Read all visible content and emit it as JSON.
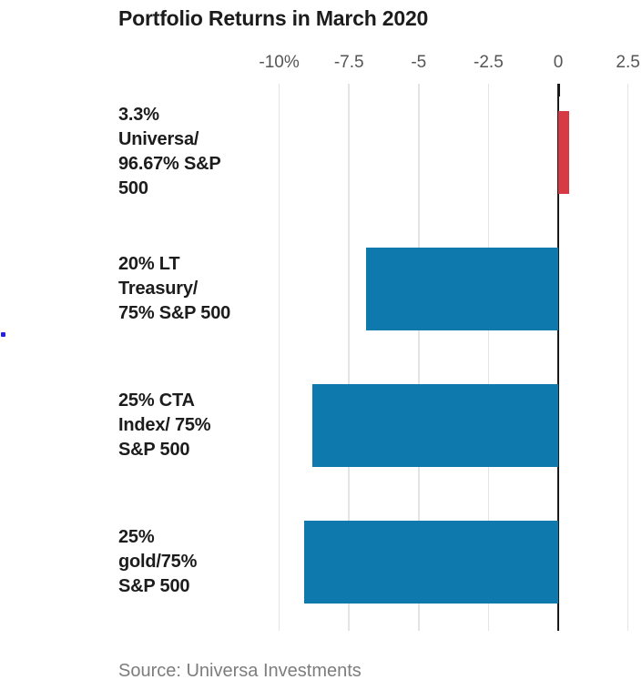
{
  "header": {
    "title": "Portfolio Returns in March 2020"
  },
  "footer": {
    "source": "Source: Universa Investments"
  },
  "chart_data": {
    "type": "bar",
    "orientation": "horizontal",
    "title": "Portfolio Returns in March 2020",
    "categories": [
      [
        "3.3%",
        "Universa/",
        "96.67% S&P",
        "500"
      ],
      [
        "20% LT",
        "Treasury/",
        "75% S&P 500"
      ],
      [
        "25% CTA",
        "Index/ 75%",
        "S&P 500"
      ],
      [
        "25%",
        "gold/75%",
        "S&P 500"
      ]
    ],
    "values": [
      0.4,
      -6.9,
      -8.8,
      -9.1
    ],
    "unit": "percent",
    "x_ticks": [
      {
        "value": -10,
        "label": "-10%"
      },
      {
        "value": -7.5,
        "label": "-7.5"
      },
      {
        "value": -5,
        "label": "-5"
      },
      {
        "value": -2.5,
        "label": "-2.5"
      },
      {
        "value": 0,
        "label": "0"
      },
      {
        "value": 2.5,
        "label": "2.5"
      }
    ],
    "xlim": [
      -10.85,
      3.0
    ],
    "grid": true,
    "legend": false,
    "colors": {
      "positive_bar": "#d63a45",
      "negative_bar": "#0e79ad",
      "gridline": "#e4e4e4",
      "zero_line": "#1a1a1a",
      "title_text": "#1c1c1c",
      "tick_text": "#555555",
      "source_text": "#7d7d7d",
      "stray_dot": "#2222dd"
    },
    "source": "Source: Universa Investments"
  }
}
